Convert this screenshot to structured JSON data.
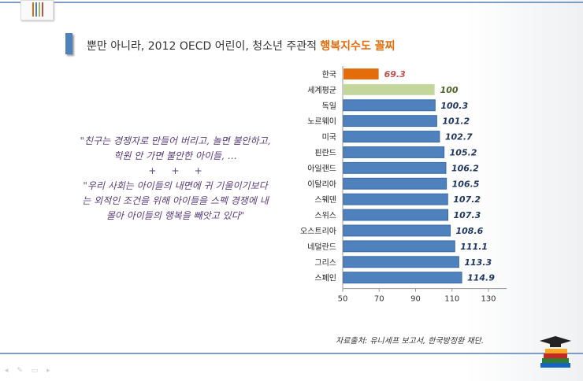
{
  "header": {
    "title_plain": "뿐만 아니라, 2012 OECD 어린이, 청소년 주관적 ",
    "title_highlight": "행복지수도 꼴찌"
  },
  "quote": {
    "line1": "\"친구는 경쟁자로 만들어 버리고, 놀면 불안하고, 학원 안 가면 불안한 아이들, …",
    "plus": "+     +     +",
    "line2": "\"우리 사회는 아이들의 내면에 귀 기울이기보다는 외적인 조건을 위해 아이들을 스펙 경쟁에 내몰아 아이들의 행복을 빼앗고 있다\""
  },
  "source": "자료출처: 유니세프 보고서, 한국방정환 재단.",
  "chart_data": {
    "type": "bar",
    "orientation": "horizontal",
    "categories": [
      "한국",
      "세계평균",
      "독일",
      "노르웨이",
      "미국",
      "핀란드",
      "아일랜드",
      "이탈리아",
      "스웨덴",
      "스위스",
      "오스트리아",
      "네덜란드",
      "그리스",
      "스페인"
    ],
    "values": [
      69.3,
      100,
      100.3,
      101.2,
      102.7,
      105.2,
      106.2,
      106.5,
      107.2,
      107.3,
      108.6,
      111.1,
      113.3,
      114.9
    ],
    "labels": [
      "69.3",
      "100",
      "100.3",
      "101.2",
      "102.7",
      "105.2",
      "106.2",
      "106.5",
      "107.2",
      "107.3",
      "108.6",
      "111.1",
      "113.3",
      "114.9"
    ],
    "colors": {
      "korea": "#e46c0a",
      "world": "#c3d69b",
      "default": "#4f81bd",
      "korea_label": "#c0504d",
      "world_label": "#4f6228",
      "label": "#1f3864"
    },
    "xlim": [
      50,
      140
    ],
    "xticks": [
      "50",
      "70",
      "90",
      "110",
      "130"
    ]
  }
}
